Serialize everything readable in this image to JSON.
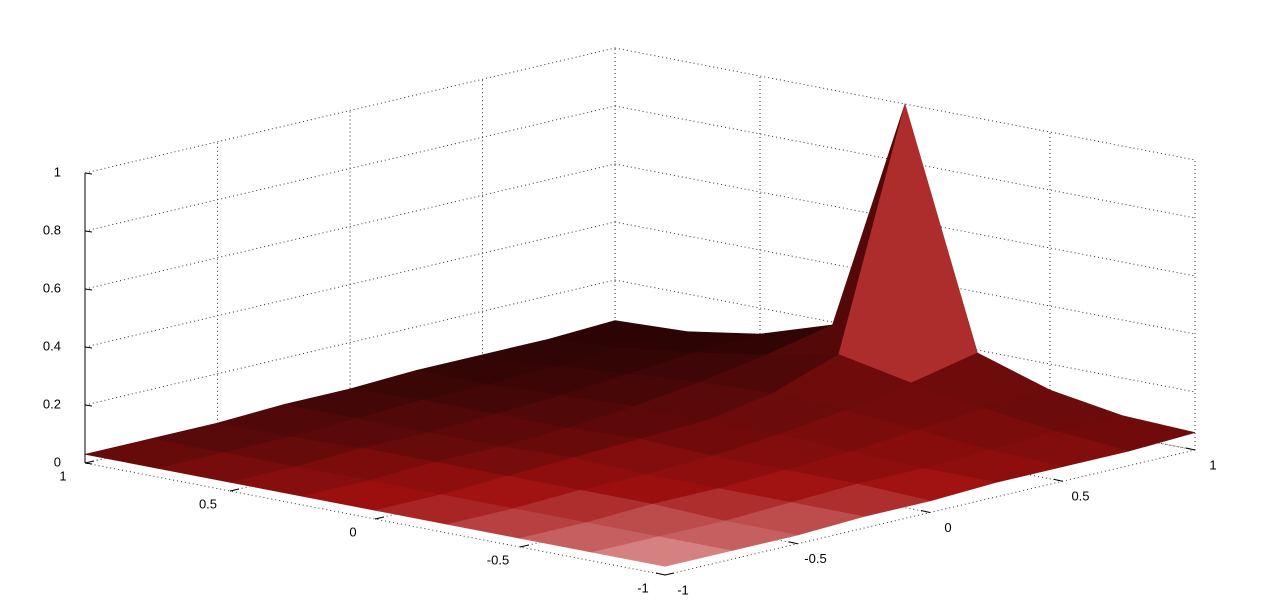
{
  "chart_data": {
    "type": "surface",
    "x": [
      -1,
      -0.75,
      -0.5,
      -0.25,
      0,
      0.25,
      0.5,
      0.75,
      1
    ],
    "y": [
      -1,
      -0.75,
      -0.5,
      -0.25,
      0,
      0.25,
      0.5,
      0.75,
      1
    ],
    "z": [
      [
        0.03,
        0.03,
        0.03,
        0.04,
        0.04,
        0.05,
        0.05,
        0.05,
        0.06
      ],
      [
        0.03,
        0.03,
        0.03,
        0.04,
        0.05,
        0.05,
        0.06,
        0.07,
        0.07
      ],
      [
        0.03,
        0.03,
        0.04,
        0.04,
        0.05,
        0.06,
        0.08,
        0.1,
        0.11
      ],
      [
        0.03,
        0.03,
        0.04,
        0.04,
        0.05,
        0.07,
        0.1,
        0.14,
        0.19
      ],
      [
        0.03,
        0.03,
        0.04,
        0.05,
        0.06,
        0.07,
        0.11,
        0.19,
        1
      ],
      [
        0.03,
        0.03,
        0.04,
        0.04,
        0.05,
        0.07,
        0.1,
        0.14,
        0.19
      ],
      [
        0.03,
        0.03,
        0.04,
        0.04,
        0.05,
        0.06,
        0.08,
        0.1,
        0.11
      ],
      [
        0.03,
        0.03,
        0.03,
        0.04,
        0.05,
        0.05,
        0.06,
        0.07,
        0.07
      ],
      [
        0.03,
        0.03,
        0.03,
        0.04,
        0.04,
        0.05,
        0.05,
        0.05,
        0.06
      ]
    ],
    "xlim": [
      -1,
      1
    ],
    "ylim": [
      -1,
      1
    ],
    "zlim": [
      0,
      1
    ],
    "xticks": [
      -1,
      -0.5,
      0,
      0.5,
      1
    ],
    "yticks": [
      -1,
      -0.5,
      0,
      0.5,
      1
    ],
    "zticks": [
      0,
      0.2,
      0.4,
      0.6,
      0.8,
      1
    ],
    "grid": true,
    "colors": [
      "#000000",
      "#a01010",
      "#ffd8d8"
    ]
  }
}
